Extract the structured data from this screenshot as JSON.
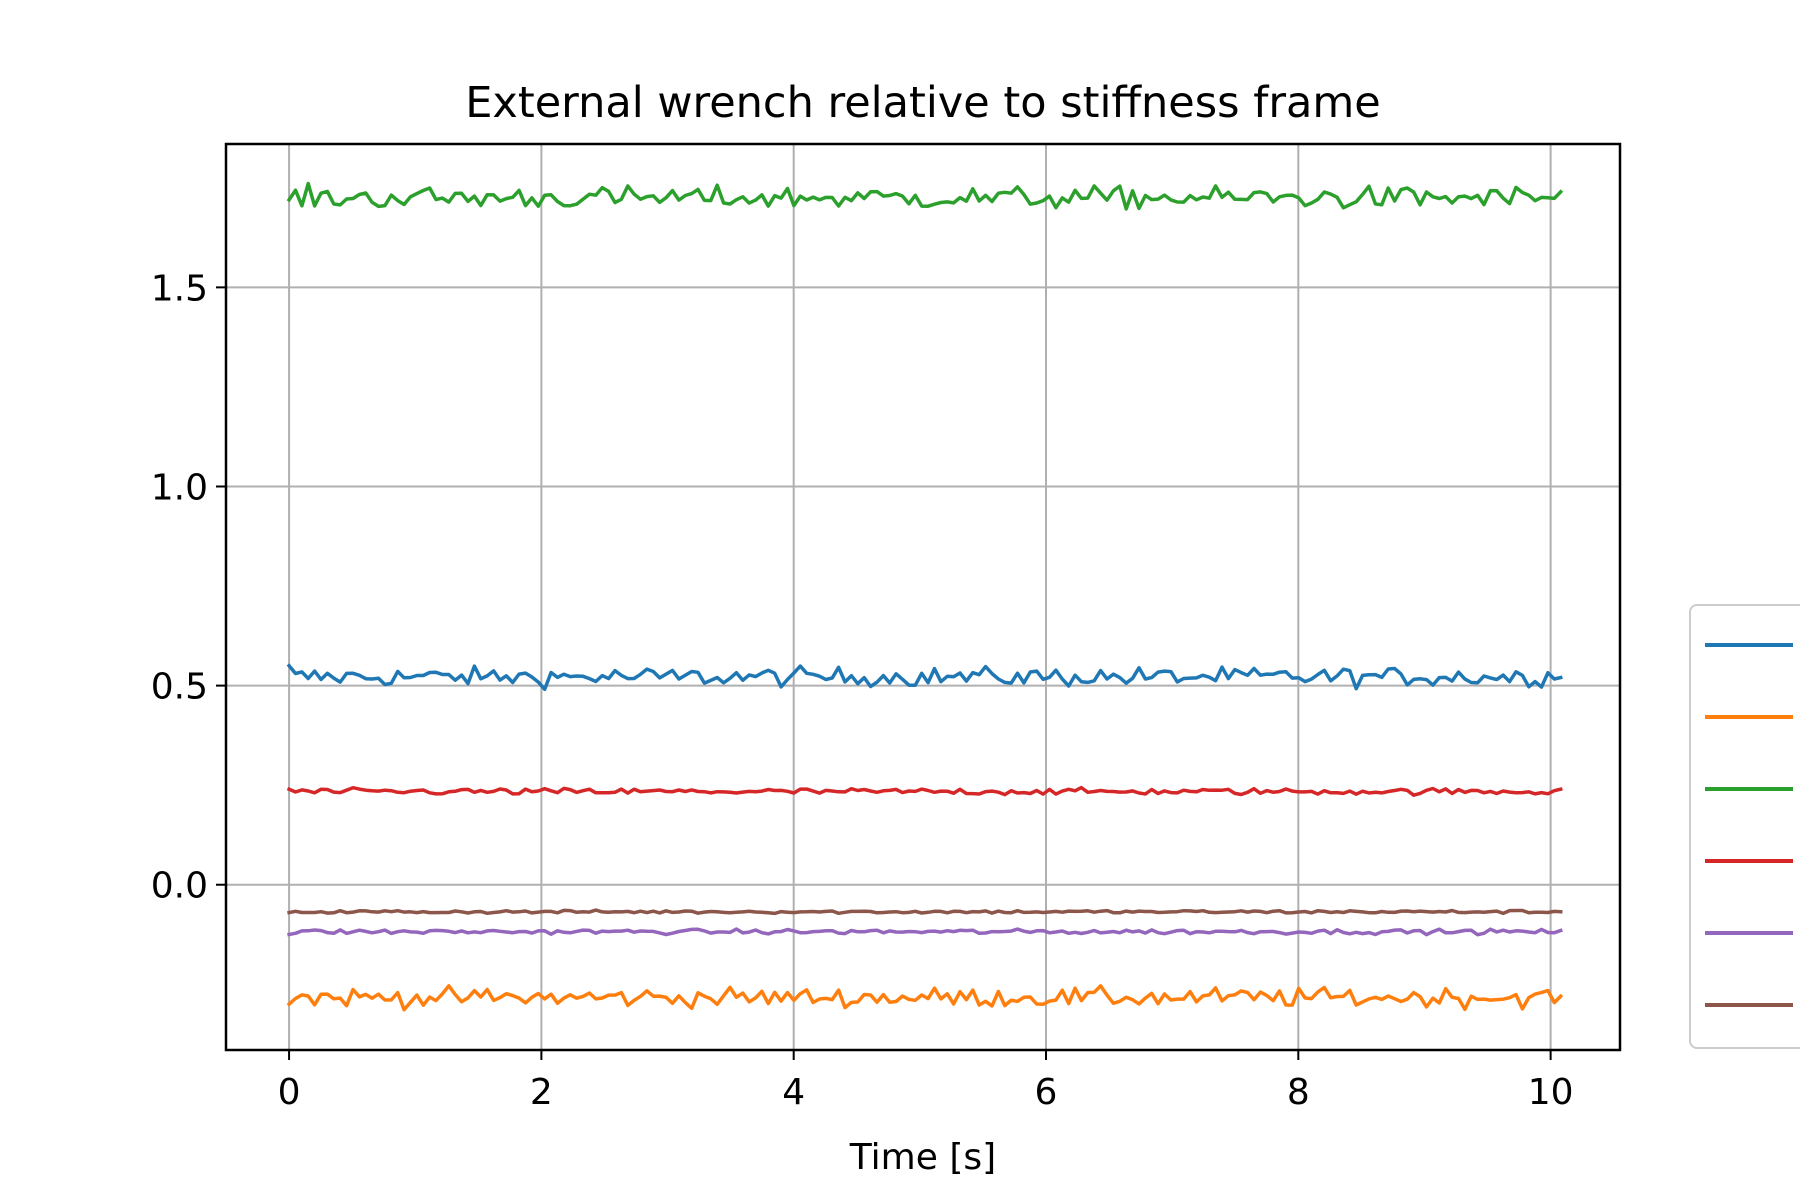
{
  "chart_data": {
    "type": "line",
    "title": "External wrench relative to stiffness frame",
    "xlabel": "Time [s]",
    "ylabel": "",
    "xlim": [
      -0.5,
      10.55
    ],
    "ylim": [
      -0.415,
      1.86
    ],
    "xticks": [
      0,
      2,
      4,
      6,
      8,
      10
    ],
    "xtick_labels": [
      "0",
      "2",
      "4",
      "6",
      "8",
      "10"
    ],
    "yticks": [
      0.0,
      0.5,
      1.0,
      1.5
    ],
    "ytick_labels": [
      "0.0",
      "0.5",
      "1.0",
      "1.5"
    ],
    "grid": true,
    "legend_position": "right, outside plot (clipped)",
    "series": [
      {
        "name": "",
        "color": "#1f77b4",
        "mean": 0.522,
        "amplitude": 0.012,
        "start": 0.55,
        "end": 0.52
      },
      {
        "name": "",
        "color": "#ff7f0e",
        "mean": -0.283,
        "amplitude": 0.012,
        "start": -0.3,
        "end": -0.28
      },
      {
        "name": "",
        "color": "#2ca02c",
        "mean": 1.725,
        "amplitude": 0.014,
        "start": 1.72,
        "end": 1.74
      },
      {
        "name": "",
        "color": "#d62728",
        "mean": 0.234,
        "amplitude": 0.004,
        "start": 0.24,
        "end": 0.24
      },
      {
        "name": "",
        "color": "#9467bd",
        "mean": -0.118,
        "amplitude": 0.003,
        "start": -0.125,
        "end": -0.115
      },
      {
        "name": "",
        "color": "#8c564b",
        "mean": -0.068,
        "amplitude": 0.002,
        "start": -0.07,
        "end": -0.068
      }
    ],
    "x_start": 0,
    "x_end": 10.08,
    "n_points": 200
  }
}
